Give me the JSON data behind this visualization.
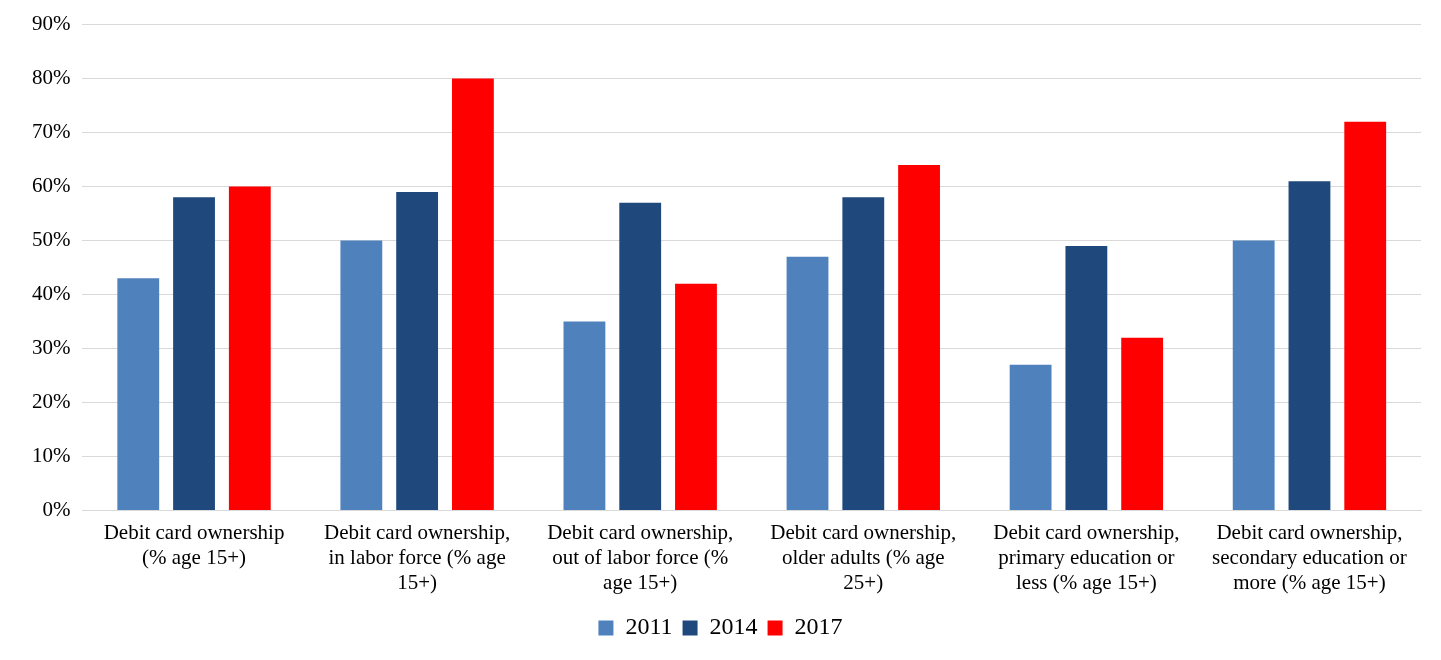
{
  "chart_data": {
    "type": "bar",
    "categories": [
      "Debit card ownership (% age 15+)",
      "Debit card ownership, in labor force (% age 15+)",
      "Debit card ownership, out of labor force (% age 15+)",
      "Debit card ownership, older adults (% age 25+)",
      "Debit card ownership, primary education or less (% age 15+)",
      "Debit card ownership, secondary education or more (% age 15+)"
    ],
    "series": [
      {
        "name": "2011",
        "color": "#4f81bd",
        "values": [
          43,
          50,
          35,
          47,
          27,
          50
        ]
      },
      {
        "name": "2014",
        "color": "#1f497d",
        "values": [
          58,
          59,
          57,
          58,
          49,
          61
        ]
      },
      {
        "name": "2017",
        "color": "#ff0000",
        "values": [
          60,
          80,
          42,
          64,
          32,
          72
        ]
      }
    ],
    "ylim": [
      0,
      90
    ],
    "yticks": [
      {
        "value": 0,
        "label": "0%"
      },
      {
        "value": 10,
        "label": "10%"
      },
      {
        "value": 20,
        "label": "20%"
      },
      {
        "value": 30,
        "label": "30%"
      },
      {
        "value": 40,
        "label": "40%"
      },
      {
        "value": 50,
        "label": "50%"
      },
      {
        "value": 60,
        "label": "60%"
      },
      {
        "value": 70,
        "label": "70%"
      },
      {
        "value": 80,
        "label": "80%"
      },
      {
        "value": 90,
        "label": "90%"
      }
    ],
    "grid": "y",
    "legend": "bottom"
  }
}
